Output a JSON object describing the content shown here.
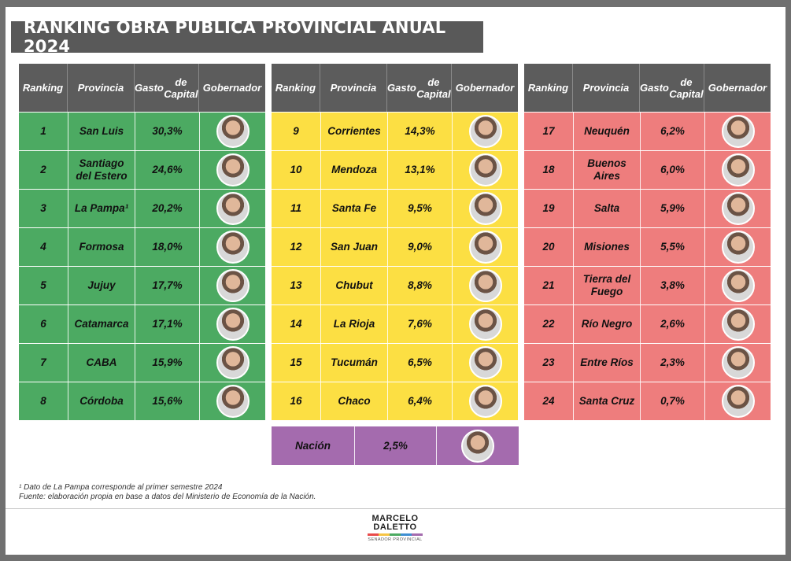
{
  "title": "RANKING OBRA PÚBLICA PROVINCIAL ANUAL 2024",
  "headers": {
    "ranking": "Ranking",
    "provincia": "Provincia",
    "gasto_line1": "Gasto",
    "gasto_line2": "de Capital",
    "gobernador": "Gobernador"
  },
  "chart_data": {
    "type": "table",
    "title": "RANKING OBRA PÚBLICA PROVINCIAL ANUAL 2024",
    "columns": [
      "Ranking",
      "Provincia",
      "Gasto de Capital",
      "Gobernador"
    ],
    "groups": [
      {
        "color": "#4caa62",
        "rows": [
          {
            "rank": "1",
            "province": "San Luis",
            "value": "30,3%"
          },
          {
            "rank": "2",
            "province": "Santiago del Estero",
            "value": "24,6%"
          },
          {
            "rank": "3",
            "province": "La Pampa¹",
            "value": "20,2%"
          },
          {
            "rank": "4",
            "province": "Formosa",
            "value": "18,0%"
          },
          {
            "rank": "5",
            "province": "Jujuy",
            "value": "17,7%"
          },
          {
            "rank": "6",
            "province": "Catamarca",
            "value": "17,1%"
          },
          {
            "rank": "7",
            "province": "CABA",
            "value": "15,9%"
          },
          {
            "rank": "8",
            "province": "Córdoba",
            "value": "15,6%"
          }
        ]
      },
      {
        "color": "#fcdf43",
        "rows": [
          {
            "rank": "9",
            "province": "Corrientes",
            "value": "14,3%"
          },
          {
            "rank": "10",
            "province": "Mendoza",
            "value": "13,1%"
          },
          {
            "rank": "11",
            "province": "Santa Fe",
            "value": "9,5%"
          },
          {
            "rank": "12",
            "province": "San Juan",
            "value": "9,0%"
          },
          {
            "rank": "13",
            "province": "Chubut",
            "value": "8,8%"
          },
          {
            "rank": "14",
            "province": "La Rioja",
            "value": "7,6%"
          },
          {
            "rank": "15",
            "province": "Tucumán",
            "value": "6,5%"
          },
          {
            "rank": "16",
            "province": "Chaco",
            "value": "6,4%"
          }
        ]
      },
      {
        "color": "#ee7d7d",
        "rows": [
          {
            "rank": "17",
            "province": "Neuquén",
            "value": "6,2%"
          },
          {
            "rank": "18",
            "province": "Buenos Aires",
            "value": "6,0%"
          },
          {
            "rank": "19",
            "province": "Salta",
            "value": "5,9%"
          },
          {
            "rank": "20",
            "province": "Misiones",
            "value": "5,5%"
          },
          {
            "rank": "21",
            "province": "Tierra del Fuego",
            "value": "3,8%"
          },
          {
            "rank": "22",
            "province": "Río Negro",
            "value": "2,6%"
          },
          {
            "rank": "23",
            "province": "Entre Ríos",
            "value": "2,3%"
          },
          {
            "rank": "24",
            "province": "Santa Cruz",
            "value": "0,7%"
          }
        ]
      }
    ],
    "nation": {
      "label": "Nación",
      "value": "2,5%",
      "color": "#a46bae"
    }
  },
  "notes": {
    "line1": "¹ Dato de La Pampa corresponde al primer semestre 2024",
    "line2": "Fuente: elaboración propia en base a datos del Ministerio de Economía de la Nación."
  },
  "logo": {
    "line1": "MARCELO",
    "line2": "DALETTO",
    "sub": "SENADOR PROVINCIAL"
  }
}
